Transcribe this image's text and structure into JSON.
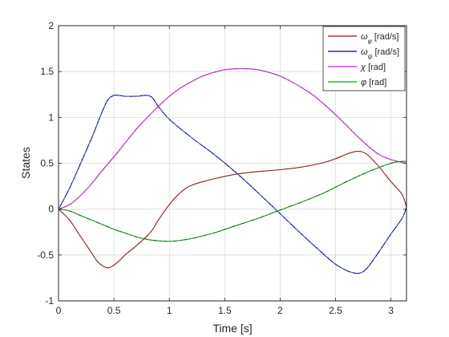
{
  "chart_data": {
    "type": "line",
    "xlabel": "Time [s]",
    "ylabel": "States",
    "xlim": [
      0,
      3.14
    ],
    "ylim": [
      -1,
      2
    ],
    "xticks": [
      0,
      0.5,
      1,
      1.5,
      2,
      2.5,
      3
    ],
    "xtick_labels": [
      "0",
      "0.5",
      "1",
      "1.5",
      "2",
      "2.5",
      "3"
    ],
    "yticks": [
      -1,
      -0.5,
      0,
      0.5,
      1,
      1.5,
      2
    ],
    "ytick_labels": [
      "-1",
      "-0.5",
      "0",
      "0.5",
      "1",
      "1.5",
      "2"
    ],
    "grid": true,
    "legend_position": "top-right",
    "series": [
      {
        "name_main": "ω",
        "name_sub": "φ",
        "name_unit": " [rad/s]",
        "color": "#c00000",
        "overlay_color": "#555555",
        "x": [
          0,
          0.1,
          0.2,
          0.3,
          0.35,
          0.4,
          0.45,
          0.5,
          0.55,
          0.6,
          0.7,
          0.8,
          0.85,
          0.9,
          1.0,
          1.1,
          1.2,
          1.4,
          1.6,
          1.8,
          2.0,
          2.2,
          2.4,
          2.5,
          2.6,
          2.65,
          2.7,
          2.75,
          2.8,
          2.9,
          3.0,
          3.1,
          3.14
        ],
        "y": [
          0,
          -0.12,
          -0.3,
          -0.48,
          -0.57,
          -0.62,
          -0.64,
          -0.61,
          -0.56,
          -0.5,
          -0.4,
          -0.29,
          -0.22,
          -0.12,
          0.05,
          0.18,
          0.26,
          0.33,
          0.38,
          0.41,
          0.43,
          0.46,
          0.51,
          0.55,
          0.6,
          0.62,
          0.63,
          0.62,
          0.58,
          0.45,
          0.3,
          0.16,
          0.02
        ]
      },
      {
        "name_main": "ω",
        "name_sub": "ψ",
        "name_unit": " [rad/s]",
        "color": "#00008b",
        "overlay_color": "#3b6fc4",
        "x": [
          0,
          0.1,
          0.2,
          0.3,
          0.35,
          0.4,
          0.45,
          0.5,
          0.55,
          0.6,
          0.7,
          0.8,
          0.85,
          0.9,
          1.0,
          1.2,
          1.4,
          1.6,
          1.8,
          2.0,
          2.2,
          2.4,
          2.5,
          2.6,
          2.65,
          2.7,
          2.75,
          2.8,
          2.9,
          3.0,
          3.1,
          3.14
        ],
        "y": [
          0,
          0.23,
          0.5,
          0.78,
          0.93,
          1.08,
          1.2,
          1.24,
          1.24,
          1.23,
          1.23,
          1.24,
          1.21,
          1.12,
          0.98,
          0.78,
          0.6,
          0.4,
          0.18,
          -0.05,
          -0.28,
          -0.5,
          -0.6,
          -0.67,
          -0.69,
          -0.7,
          -0.68,
          -0.62,
          -0.45,
          -0.27,
          -0.1,
          0.02
        ]
      },
      {
        "name_main": "χ",
        "name_sub": "",
        "name_unit": " [rad]",
        "color": "#ff00ff",
        "overlay_color": "#555555",
        "x": [
          0,
          0.1,
          0.2,
          0.3,
          0.4,
          0.5,
          0.6,
          0.7,
          0.8,
          0.9,
          1.0,
          1.1,
          1.2,
          1.3,
          1.4,
          1.5,
          1.6,
          1.7,
          1.8,
          1.9,
          2.0,
          2.1,
          2.2,
          2.3,
          2.4,
          2.5,
          2.6,
          2.7,
          2.8,
          2.9,
          3.0,
          3.1,
          3.14
        ],
        "y": [
          0,
          0.05,
          0.15,
          0.28,
          0.43,
          0.57,
          0.72,
          0.87,
          1.0,
          1.12,
          1.23,
          1.32,
          1.39,
          1.45,
          1.49,
          1.52,
          1.53,
          1.53,
          1.52,
          1.49,
          1.45,
          1.39,
          1.32,
          1.24,
          1.14,
          1.03,
          0.91,
          0.79,
          0.68,
          0.59,
          0.54,
          0.51,
          0.5
        ]
      },
      {
        "name_main": "φ",
        "name_sub": "",
        "name_unit": " [rad]",
        "color": "#00b000",
        "overlay_color": "#333333",
        "x": [
          0,
          0.1,
          0.2,
          0.3,
          0.4,
          0.5,
          0.6,
          0.7,
          0.8,
          0.9,
          1.0,
          1.1,
          1.2,
          1.4,
          1.6,
          1.8,
          2.0,
          2.2,
          2.4,
          2.6,
          2.8,
          3.0,
          3.1,
          3.14
        ],
        "y": [
          0,
          -0.02,
          -0.07,
          -0.12,
          -0.17,
          -0.22,
          -0.26,
          -0.3,
          -0.33,
          -0.345,
          -0.35,
          -0.34,
          -0.32,
          -0.26,
          -0.18,
          -0.1,
          -0.01,
          0.08,
          0.18,
          0.3,
          0.41,
          0.5,
          0.52,
          0.52
        ]
      }
    ]
  }
}
